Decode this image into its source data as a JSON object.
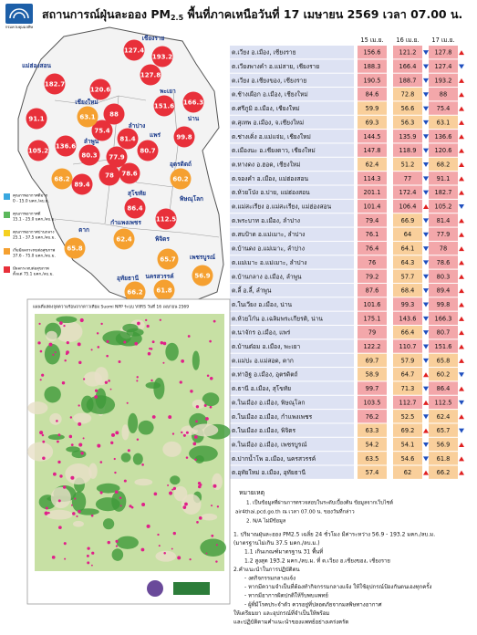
{
  "header": {
    "logo": "กรมควบคุมมลพิษ",
    "title": [
      "สถานการณ์ฝุ่นละออง PM",
      "2.5",
      " พื้นที่ภาคเหนือวันที่ 17 เมษายน 2569 เวลา 07.00 น."
    ]
  },
  "table": {
    "columns": [
      "15 เม.ย.",
      "16 เม.ย.",
      "17 เม.ย."
    ],
    "rows": [
      {
        "station": "ต.เวียง อ.เมือง, เชียงราย",
        "values": [
          156.6,
          121.2,
          127.8
        ]
      },
      {
        "station": "ต.เวียงพางคำ อ.แม่สาย, เชียงราย",
        "values": [
          188.3,
          166.4,
          127.4
        ]
      },
      {
        "station": "ต.เวียง อ.เชียงของ, เชียงราย",
        "values": [
          190.5,
          188.7,
          193.2
        ]
      },
      {
        "station": "ต.ช้างเผือก อ.เมือง, เชียงใหม่",
        "values": [
          84.6,
          72.8,
          88.0
        ]
      },
      {
        "station": "ต.ศรีภูมิ อ.เมือง, เชียงใหม่",
        "values": [
          59.9,
          56.6,
          75.4
        ]
      },
      {
        "station": "ต.สุเทพ อ.เมือง, จ.เชียงใหม่",
        "values": [
          69.3,
          56.3,
          63.1
        ]
      },
      {
        "station": "ต.ช่างเคิ่ง อ.แม่แจ่ม, เชียงใหม่",
        "values": [
          144.5,
          135.9,
          136.6
        ]
      },
      {
        "station": "ต.เมืองนะ อ.เชียงดาว, เชียงใหม่",
        "values": [
          147.8,
          118.9,
          120.6
        ]
      },
      {
        "station": "ต.หางดง อ.ฮอด, เชียงใหม่",
        "values": [
          62.4,
          51.2,
          68.2
        ]
      },
      {
        "station": "ต.จองคำ อ.เมือง, แม่ฮ่องสอน",
        "values": [
          114.3,
          77.0,
          91.1
        ]
      },
      {
        "station": "ต.ห้วยโป่ง อ.ปาย, แม่ฮ่องสอน",
        "values": [
          201.1,
          172.4,
          182.7
        ]
      },
      {
        "station": "ต.แม่สะเรียง อ.แม่สะเรียง, แม่ฮ่องสอน",
        "values": [
          101.4,
          106.4,
          105.2
        ]
      },
      {
        "station": "ต.พระบาท อ.เมือง, ลำปาง",
        "values": [
          79.4,
          66.9,
          81.4
        ]
      },
      {
        "station": "ต.สบป้าด อ.แม่เมาะ, ลำปาง",
        "values": [
          76.1,
          64.0,
          77.9
        ]
      },
      {
        "station": "ต.บ้านดง อ.แม่เมาะ, ลำปาง",
        "values": [
          76.4,
          64.1,
          78.0
        ]
      },
      {
        "station": "ต.แม่เมาะ อ.แม่เมาะ, ลำปาง",
        "values": [
          76.0,
          64.3,
          78.6
        ]
      },
      {
        "station": "ต.บ้านกลาง อ.เมือง, ลำพูน",
        "values": [
          79.2,
          57.7,
          80.3
        ]
      },
      {
        "station": "ต.ลี้ อ.ลี้, ลำพูน",
        "values": [
          87.6,
          68.4,
          89.4
        ]
      },
      {
        "station": "ต.ในเวียง อ.เมือง, น่าน",
        "values": [
          101.6,
          99.3,
          99.8
        ]
      },
      {
        "station": "ต.ห้วยโก๋น อ.เฉลิมพระเกียรติ, น่าน",
        "values": [
          175.1,
          143.6,
          166.3
        ]
      },
      {
        "station": "ต.นาจักร อ.เมือง, แพร่",
        "values": [
          79.0,
          66.4,
          80.7
        ]
      },
      {
        "station": "ต.บ้านต๋อม อ.เมือง, พะเยา",
        "values": [
          122.2,
          110.7,
          151.6
        ]
      },
      {
        "station": "ต.แม่ปะ อ.แม่สอด, ตาก",
        "values": [
          69.7,
          57.9,
          65.8
        ]
      },
      {
        "station": "ต.ท่าอิฐ อ.เมือง, อุตรดิตถ์",
        "values": [
          58.9,
          64.7,
          60.2
        ]
      },
      {
        "station": "ต.ธานี อ.เมือง, สุโขทัย",
        "values": [
          99.7,
          71.3,
          86.4
        ]
      },
      {
        "station": "ต.ในเมือง อ.เมือง, พิษณุโลก",
        "values": [
          103.5,
          112.7,
          112.5
        ]
      },
      {
        "station": "ต.ในเมือง อ.เมือง, กำแพงเพชร",
        "values": [
          76.2,
          52.5,
          62.4
        ]
      },
      {
        "station": "ต.ในเมือง อ.เมือง, พิจิตร",
        "values": [
          63.3,
          69.2,
          65.7
        ]
      },
      {
        "station": "ต.ในเมือง อ.เมือง, เพชรบูรณ์",
        "values": [
          54.2,
          54.1,
          56.9
        ]
      },
      {
        "station": "ต.ปากน้ำโพ อ.เมือง, นครสวรรค์",
        "values": [
          63.5,
          54.6,
          61.8
        ]
      },
      {
        "station": "ต.อุทัยใหม่ อ.เมือง, อุทัยธานี",
        "values": [
          57.4,
          62.0,
          66.2
        ]
      }
    ]
  },
  "levels": [
    {
      "label": "คุณภาพอากาศดีมาก",
      "range": "0 - 15.0 มคก./ลบ.ม.",
      "min": 0,
      "max": 15.0,
      "color": "#3aa8e0"
    },
    {
      "label": "คุณภาพอากาศดี",
      "range": "15.1 - 25.0 มคก./ลบ.ม.",
      "min": 15.1,
      "max": 25.0,
      "color": "#5cb85c"
    },
    {
      "label": "คุณภาพอากาศปานกลาง",
      "range": "25.1 - 37.5 มคก./ลบ.ม.",
      "min": 25.1,
      "max": 37.5,
      "color": "#f5d020"
    },
    {
      "label": "เริ่มมีผลกระทบต่อสุขภาพ",
      "range": "37.6 - 75.0 มคก./ลบ.ม.",
      "min": 37.6,
      "max": 75.0,
      "color": "#f5a030"
    },
    {
      "label": "มีผลกระทบต่อสุขภาพ",
      "range": "ตั้งแต่ 75.1 มคก./ลบ.ม.",
      "min": 75.1,
      "color": "#e8303a"
    }
  ],
  "map": {
    "provinces": [
      "เชียงราย",
      "แม่ฮ่องสอน",
      "เชียงใหม่",
      "พะเยา",
      "น่าน",
      "ลำปาง",
      "ลำพูน",
      "แพร่",
      "อุตรดิตถ์",
      "ตาก",
      "สุโขทัย",
      "พิษณุโลก",
      "กำแพงเพชร",
      "พิจิตร",
      "เพชรบูรณ์",
      "นครสวรรค์",
      "อุทัยธานี"
    ]
  },
  "hotspot": {
    "title": "แผนที่แสดงจุดความร้อนจากดาวเทียม Suomi NPP ระบบ VIIRS วันที่ 16 เมษายน 2569"
  },
  "notes": {
    "heading": "หมายเหตุ",
    "items": [
      "1. เป็นข้อมูลที่ผ่านการตรวจสอบในระดับเบื้องต้น ข้อมูลจากเว็บไซต์",
      "air4thai.pcd.go.th ณ เวลา 07.00 น. ของวันที่กล่าว",
      "2. N/A ไม่มีข้อมูล"
    ],
    "summary": [
      "1. ปริมาณฝุ่นละออง PM2.5 เฉลี่ย 24 ชั่วโมง มีค่าระหว่าง 56.9 - 193.2 มคก./ลบ.ม.",
      "(มาตรฐานไม่เกิน 37.5 มคก./ลบ.ม.)",
      "1.1 เกินเกณฑ์มาตรฐาน 31 พื้นที่",
      "1.2 สูงสุด 193.2 มคก./ลบ.ม. ที่ ต.เวียง อ.เชียงของ, เชียงราย",
      "2.คำแนะนำในการปฏิบัติตน",
      "- งดกิจกรรมกลางแจ้ง",
      "- หากมีความจำเป็นที่ต้องทำกิจกรรมกลางแจ้ง ให้ใช้อุปกรณ์ป้องกันตนเองทุกครั้ง",
      "- หากมีอาการผิดปกติให้รีบพบแพทย์",
      "- ผู้ที่มีโรคประจำตัว ควรอยู่ที่ปลอดภัยจากมลพิษทางอากาศ",
      "ให้เตรียมยา และอุปกรณ์ที่จำเป็นให้พร้อม",
      "และปฏิบัติตามคำแนะนำของแพทย์อย่างเคร่งครัด"
    ]
  }
}
